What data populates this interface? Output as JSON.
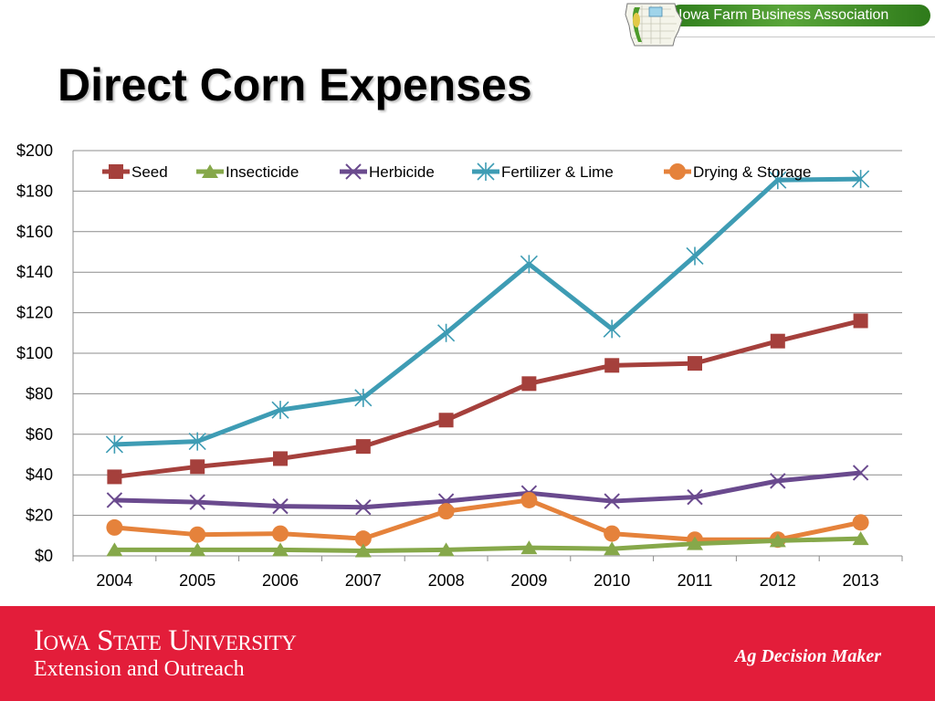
{
  "header": {
    "association_name": "Iowa Farm Business Association",
    "title": "Direct Corn Expenses"
  },
  "footer": {
    "university": "Iowa State University",
    "unit": "Extension and Outreach",
    "brand": "Ag Decision Maker"
  },
  "colors": {
    "seed": "#a5403c",
    "insecticide": "#86a84a",
    "herbicide": "#6a4a8e",
    "fertilizer": "#3e9cb4",
    "drying": "#e5823b",
    "footer": "#e31d3a",
    "banner": "#3f8f2a"
  },
  "chart_data": {
    "type": "line",
    "title": "",
    "xlabel": "",
    "ylabel": "",
    "categories": [
      "2004",
      "2005",
      "2006",
      "2007",
      "2008",
      "2009",
      "2010",
      "2011",
      "2012",
      "2013"
    ],
    "ylim": [
      0,
      200
    ],
    "yticks": [
      0,
      20,
      40,
      60,
      80,
      100,
      120,
      140,
      160,
      180,
      200
    ],
    "ytick_labels": [
      "$0",
      "$20",
      "$40",
      "$60",
      "$80",
      "$100",
      "$120",
      "$140",
      "$160",
      "$180",
      "$200"
    ],
    "grid": true,
    "legend_position": "top",
    "series": [
      {
        "name": "Seed",
        "marker": "square",
        "color": "#a5403c",
        "values": [
          39,
          44,
          48,
          54,
          67,
          85,
          94,
          95,
          106,
          116
        ]
      },
      {
        "name": "Insecticide",
        "marker": "triangle",
        "color": "#86a84a",
        "values": [
          3,
          3,
          3,
          2.5,
          3,
          4,
          3.5,
          6,
          7.5,
          8.5
        ]
      },
      {
        "name": "Herbicide",
        "marker": "x",
        "color": "#6a4a8e",
        "values": [
          27.5,
          26.5,
          24.5,
          24,
          27,
          31,
          27,
          29,
          37,
          41
        ]
      },
      {
        "name": "Fertilizer & Lime",
        "marker": "star",
        "color": "#3e9cb4",
        "values": [
          55,
          56.5,
          72,
          78,
          110,
          144,
          112,
          148,
          185.5,
          186
        ]
      },
      {
        "name": "Drying & Storage",
        "marker": "circle",
        "color": "#e5823b",
        "values": [
          14,
          10.5,
          11,
          8.5,
          22,
          27.5,
          11,
          8,
          8,
          16.5
        ]
      }
    ]
  }
}
